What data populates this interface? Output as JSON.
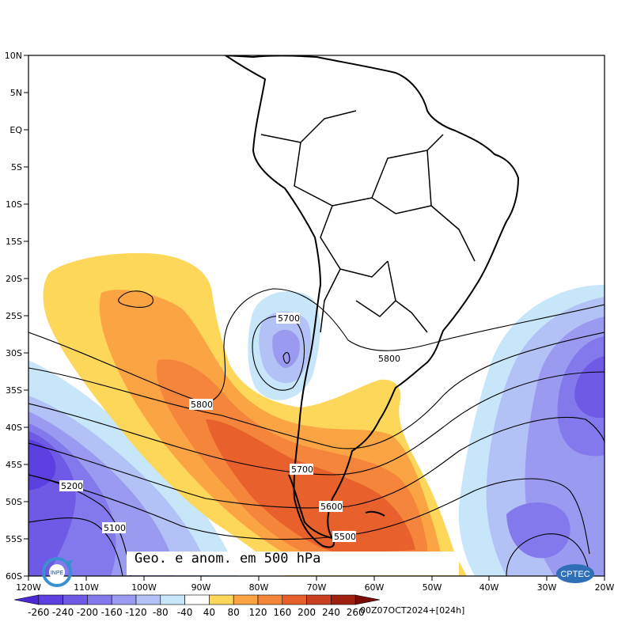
{
  "title": "Geo. e anom. em 500 hPa",
  "run_label": "00Z07OCT2024+[024h]",
  "logos": {
    "left": "INPE",
    "right": "CPTEC"
  },
  "lat_ticks": [
    "10N",
    "5N",
    "EQ",
    "5S",
    "10S",
    "15S",
    "20S",
    "25S",
    "30S",
    "35S",
    "40S",
    "45S",
    "50S",
    "55S",
    "60S"
  ],
  "lon_ticks": [
    "120W",
    "110W",
    "100W",
    "90W",
    "80W",
    "70W",
    "60W",
    "50W",
    "40W",
    "30W",
    "20W"
  ],
  "colorbar": {
    "labels": [
      "-260",
      "-240",
      "-200",
      "-160",
      "-120",
      "-80",
      "-40",
      "40",
      "80",
      "120",
      "160",
      "200",
      "240",
      "260"
    ],
    "colors": [
      "#4b2ad6",
      "#5b3fe0",
      "#6f5ae6",
      "#8479ec",
      "#9a9af0",
      "#b3c2f6",
      "#c8e6fa",
      "#ffffff",
      "#fdd75a",
      "#fba444",
      "#f4853a",
      "#e8602c",
      "#c8401f",
      "#a02010",
      "#7a0a05"
    ]
  },
  "contour_labels": [
    "5700",
    "5800",
    "5800",
    "5700",
    "5600",
    "5500",
    "5200",
    "5100"
  ],
  "colors": {
    "coast": "#000000",
    "contour": "#000000"
  }
}
